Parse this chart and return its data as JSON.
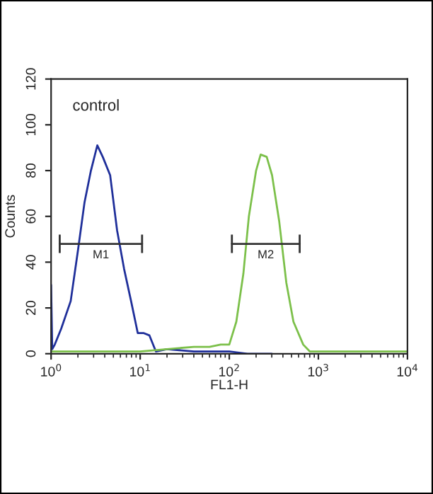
{
  "chart_data": {
    "type": "line",
    "xlabel": "FL1-H",
    "ylabel": "Counts",
    "log": "x",
    "grid": false,
    "legend": false,
    "marker": "none",
    "line_style": "solid",
    "xlim": [
      1,
      10000
    ],
    "xticks": [
      {
        "value": 1,
        "label": "10$^{0}$"
      },
      {
        "value": 10,
        "label": "10$^{1}$"
      },
      {
        "value": 100,
        "label": "10$^{2}$"
      },
      {
        "value": 1000,
        "label": "10$^{3}$"
      },
      {
        "value": 10000,
        "label": "10$^{4}$"
      }
    ],
    "ylim": [
      0,
      120
    ],
    "yticks": [
      0,
      20,
      40,
      60,
      80,
      100,
      120
    ],
    "annotations": [
      "control"
    ],
    "series": [
      {
        "color": "#1f2f9a",
        "x": [
          1,
          1.03,
          1.1,
          1.3,
          1.66,
          2.0,
          2.37,
          2.8,
          3.3,
          3.8,
          4.6,
          5.5,
          6.6,
          7.9,
          9.4,
          11,
          12.7,
          15,
          20,
          40,
          100,
          160,
          300
        ],
        "values": [
          30,
          2,
          4,
          11,
          23,
          45,
          66,
          80,
          91,
          86,
          78,
          54,
          37,
          23,
          9,
          9,
          8,
          1,
          2,
          1,
          1,
          0,
          0
        ]
      },
      {
        "color": "#7cc04a",
        "x": [
          1,
          2,
          5,
          10,
          20,
          40,
          60,
          80,
          100,
          120,
          144,
          166,
          200,
          225,
          263,
          302,
          363,
          437,
          525,
          676,
          800,
          2000,
          10000
        ],
        "values": [
          1,
          1,
          1,
          1,
          2,
          3,
          3,
          4,
          4,
          14,
          35,
          60,
          80,
          87,
          86,
          78,
          58,
          31,
          14,
          4,
          1,
          1,
          1
        ]
      },
      {
        "type": "line",
        "name": "M1",
        "color": "#333333",
        "x": [
          1.25,
          10.5
        ],
        "values": [
          48,
          48
        ],
        "errors": [
          4,
          4
        ]
      },
      {
        "type": "line",
        "name": "M2",
        "color": "#333333",
        "x": [
          107,
          617
        ],
        "values": [
          48,
          48
        ],
        "errors": [
          4,
          4
        ]
      }
    ]
  }
}
